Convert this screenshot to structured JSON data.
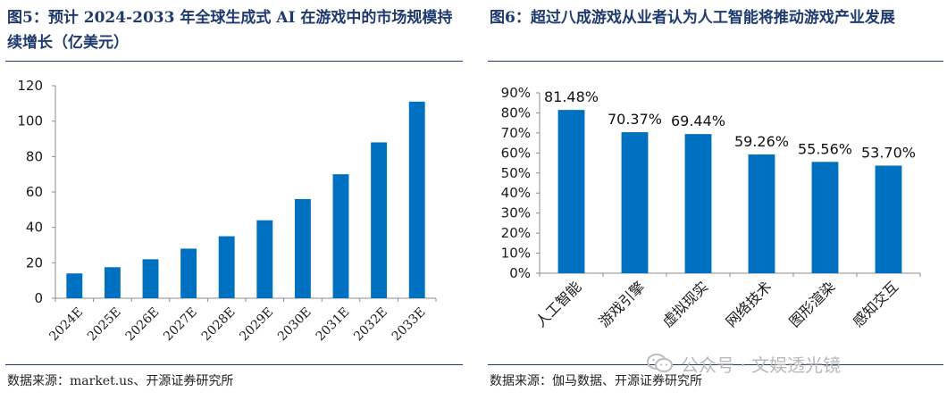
{
  "left": {
    "title": "图5：预计 2024-2033 年全球生成式 AI 在游戏中的市场规模持续增长（亿美元）",
    "source": "数据来源：market.us、开源证券研究所"
  },
  "right": {
    "title": "图6：超过八成游戏从业者认为人工智能将推动游戏产业发展",
    "source": "数据来源：伽马数据、开源证券研究所"
  },
  "watermark": {
    "text": "公众号 · 文娱透光镜",
    "icon": "wechat-icon"
  },
  "chart_data": [
    {
      "type": "bar",
      "title": "图5：预计 2024-2033 年全球生成式 AI 在游戏中的市场规模持续增长（亿美元）",
      "categories": [
        "2024E",
        "2025E",
        "2026E",
        "2027E",
        "2028E",
        "2029E",
        "2030E",
        "2031E",
        "2032E",
        "2033E"
      ],
      "values": [
        14,
        17.5,
        22,
        28,
        35,
        44,
        56,
        70,
        88,
        111
      ],
      "ylim": [
        0,
        120
      ],
      "yticks": [
        "0",
        "20",
        "40",
        "60",
        "80",
        "100",
        "120"
      ],
      "ytick_values": [
        0,
        20,
        40,
        60,
        80,
        100,
        120
      ],
      "xlabel": "",
      "ylabel": "",
      "grid": false,
      "bar_color": "#0070c0"
    },
    {
      "type": "bar",
      "title": "图6：超过八成游戏从业者认为人工智能将推动游戏产业发展",
      "categories": [
        "人工智能",
        "游戏引擎",
        "虚拟现实",
        "网络技术",
        "图形渲染",
        "感知交互"
      ],
      "values": [
        81.48,
        70.37,
        69.44,
        59.26,
        55.56,
        53.7
      ],
      "data_labels": [
        "81.48%",
        "70.37%",
        "69.44%",
        "59.26%",
        "55.56%",
        "53.70%"
      ],
      "ylim": [
        0,
        90
      ],
      "yticks": [
        "0%",
        "10%",
        "20%",
        "30%",
        "40%",
        "50%",
        "60%",
        "70%",
        "80%",
        "90%"
      ],
      "ytick_values": [
        0,
        10,
        20,
        30,
        40,
        50,
        60,
        70,
        80,
        90
      ],
      "xlabel": "",
      "ylabel": "",
      "grid": false,
      "bar_color": "#0070c0"
    }
  ]
}
